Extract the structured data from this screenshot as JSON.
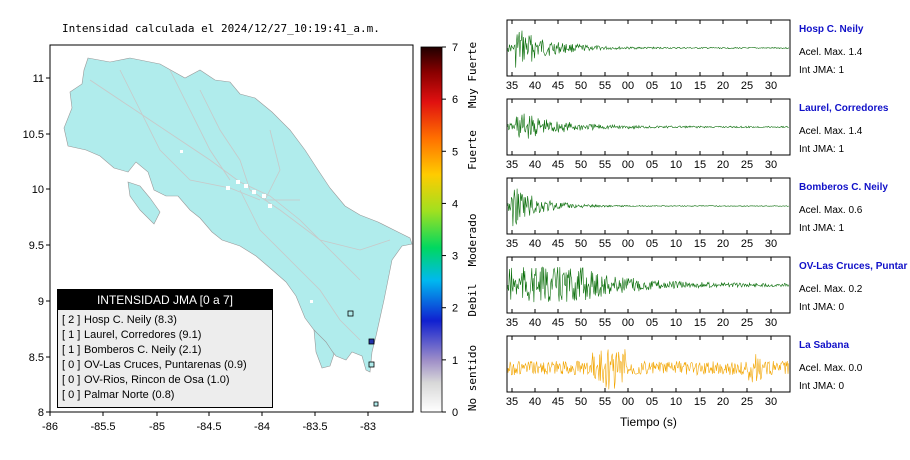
{
  "map": {
    "title": "Intensidad calculada el 2024/12/27_10:19:41_a.m.",
    "lon_ticks": [
      "-86",
      "-85.5",
      "-85",
      "-84.5",
      "-84",
      "-83.5",
      "-83"
    ],
    "lat_ticks": [
      "11",
      "10.5",
      "10",
      "9.5",
      "9",
      "8.5",
      "8"
    ]
  },
  "scale": {
    "ticks": [
      "7",
      "6",
      "5",
      "4",
      "3",
      "2",
      "1",
      "0"
    ],
    "labels": [
      "Muy Fuerte",
      "Fuerte",
      "Moderado",
      "Debil",
      "No sentido"
    ]
  },
  "legend": {
    "title": "INTENSIDAD JMA [0 a 7]",
    "items": [
      {
        "level": "[ 2 ]",
        "text": "Hosp C. Neily (8.3)"
      },
      {
        "level": "[ 1 ]",
        "text": "Laurel, Corredores (9.1)"
      },
      {
        "level": "[ 1 ]",
        "text": "Bomberos C. Neily (2.1)"
      },
      {
        "level": "[ 0 ]",
        "text": "OV-Las Cruces, Puntarenas (0.9)"
      },
      {
        "level": "[ 0 ]",
        "text": "OV-Rios, Rincon de Osa (1.0)"
      },
      {
        "level": "[ 0 ]",
        "text": "Palmar Norte (0.8)"
      }
    ]
  },
  "stations": [
    {
      "name": "Hosp C. Neily",
      "accel": "Acel. Max. 1.4",
      "int": "Int JMA: 1",
      "color": "#0a6e0a",
      "ticks": [
        "35",
        "40",
        "45",
        "50",
        "55",
        "00",
        "05",
        "10",
        "15",
        "20",
        "25",
        "30"
      ]
    },
    {
      "name": "Laurel, Corredores",
      "accel": "Acel. Max. 1.4",
      "int": "Int JMA: 1",
      "color": "#0a6e0a",
      "ticks": [
        "35",
        "40",
        "45",
        "50",
        "55",
        "00",
        "05",
        "10",
        "15",
        "20",
        "25",
        "30"
      ]
    },
    {
      "name": "Bomberos C. Neily",
      "accel": "Acel. Max. 0.6",
      "int": "Int JMA: 1",
      "color": "#0a6e0a",
      "ticks": [
        "35",
        "40",
        "45",
        "50",
        "55",
        "00",
        "05",
        "10",
        "15",
        "20",
        "25",
        "30"
      ]
    },
    {
      "name": "OV-Las Cruces, Puntar",
      "accel": "Acel. Max. 0.2",
      "int": "Int JMA: 0",
      "color": "#0a6e0a",
      "ticks": [
        "35",
        "40",
        "45",
        "50",
        "55",
        "00",
        "05",
        "10",
        "15",
        "20",
        "25",
        "30"
      ]
    },
    {
      "name": "La Sabana",
      "accel": "Acel. Max. 0.0",
      "int": "Int JMA: 0",
      "color": "#f2a500",
      "ticks": [
        "35",
        "40",
        "45",
        "50",
        "55",
        "00",
        "05",
        "10",
        "15",
        "20",
        "25",
        "30"
      ]
    }
  ],
  "xlabel": "Tiempo (s)"
}
